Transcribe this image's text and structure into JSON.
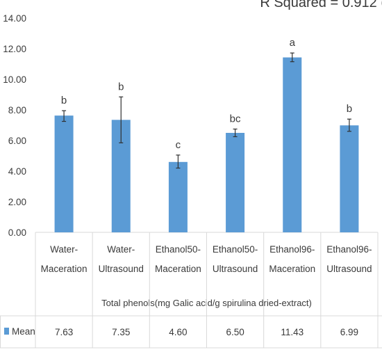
{
  "header_text": "R Squared = 0.912 (",
  "chart_data": {
    "type": "bar",
    "title": "",
    "xlabel": "Total phenols(mg Galic acid/g spirulina dried-extract)",
    "ylabel": "",
    "ylim": [
      0,
      14
    ],
    "yticks": [
      "0.00",
      "2.00",
      "4.00",
      "6.00",
      "8.00",
      "10.00",
      "12.00",
      "14.00"
    ],
    "categories": [
      [
        "Water-",
        "Maceration"
      ],
      [
        "Water-",
        "Ultrasound"
      ],
      [
        "Ethanol50-",
        "Maceration"
      ],
      [
        "Ethanol50-",
        "Ultrasound"
      ],
      [
        "Ethanol96-",
        "Maceration"
      ],
      [
        "Ethanol96-",
        "Ultrasound"
      ]
    ],
    "series": [
      {
        "name": "Mean",
        "color": "#5b9bd5",
        "values": [
          7.63,
          7.35,
          4.6,
          6.5,
          11.43,
          6.99
        ],
        "value_labels": [
          "7.63",
          "7.35",
          "4.60",
          "6.50",
          "11.43",
          "6.99"
        ],
        "error_bars": [
          [
            7.25,
            7.95
          ],
          [
            5.85,
            8.85
          ],
          [
            4.2,
            5.05
          ],
          [
            6.25,
            6.75
          ],
          [
            11.15,
            11.72
          ],
          [
            6.6,
            7.4
          ]
        ],
        "significance": [
          "b",
          "b",
          "c",
          "bc",
          "a",
          "b"
        ]
      }
    ],
    "grid": false,
    "legend": "table-row-left"
  }
}
